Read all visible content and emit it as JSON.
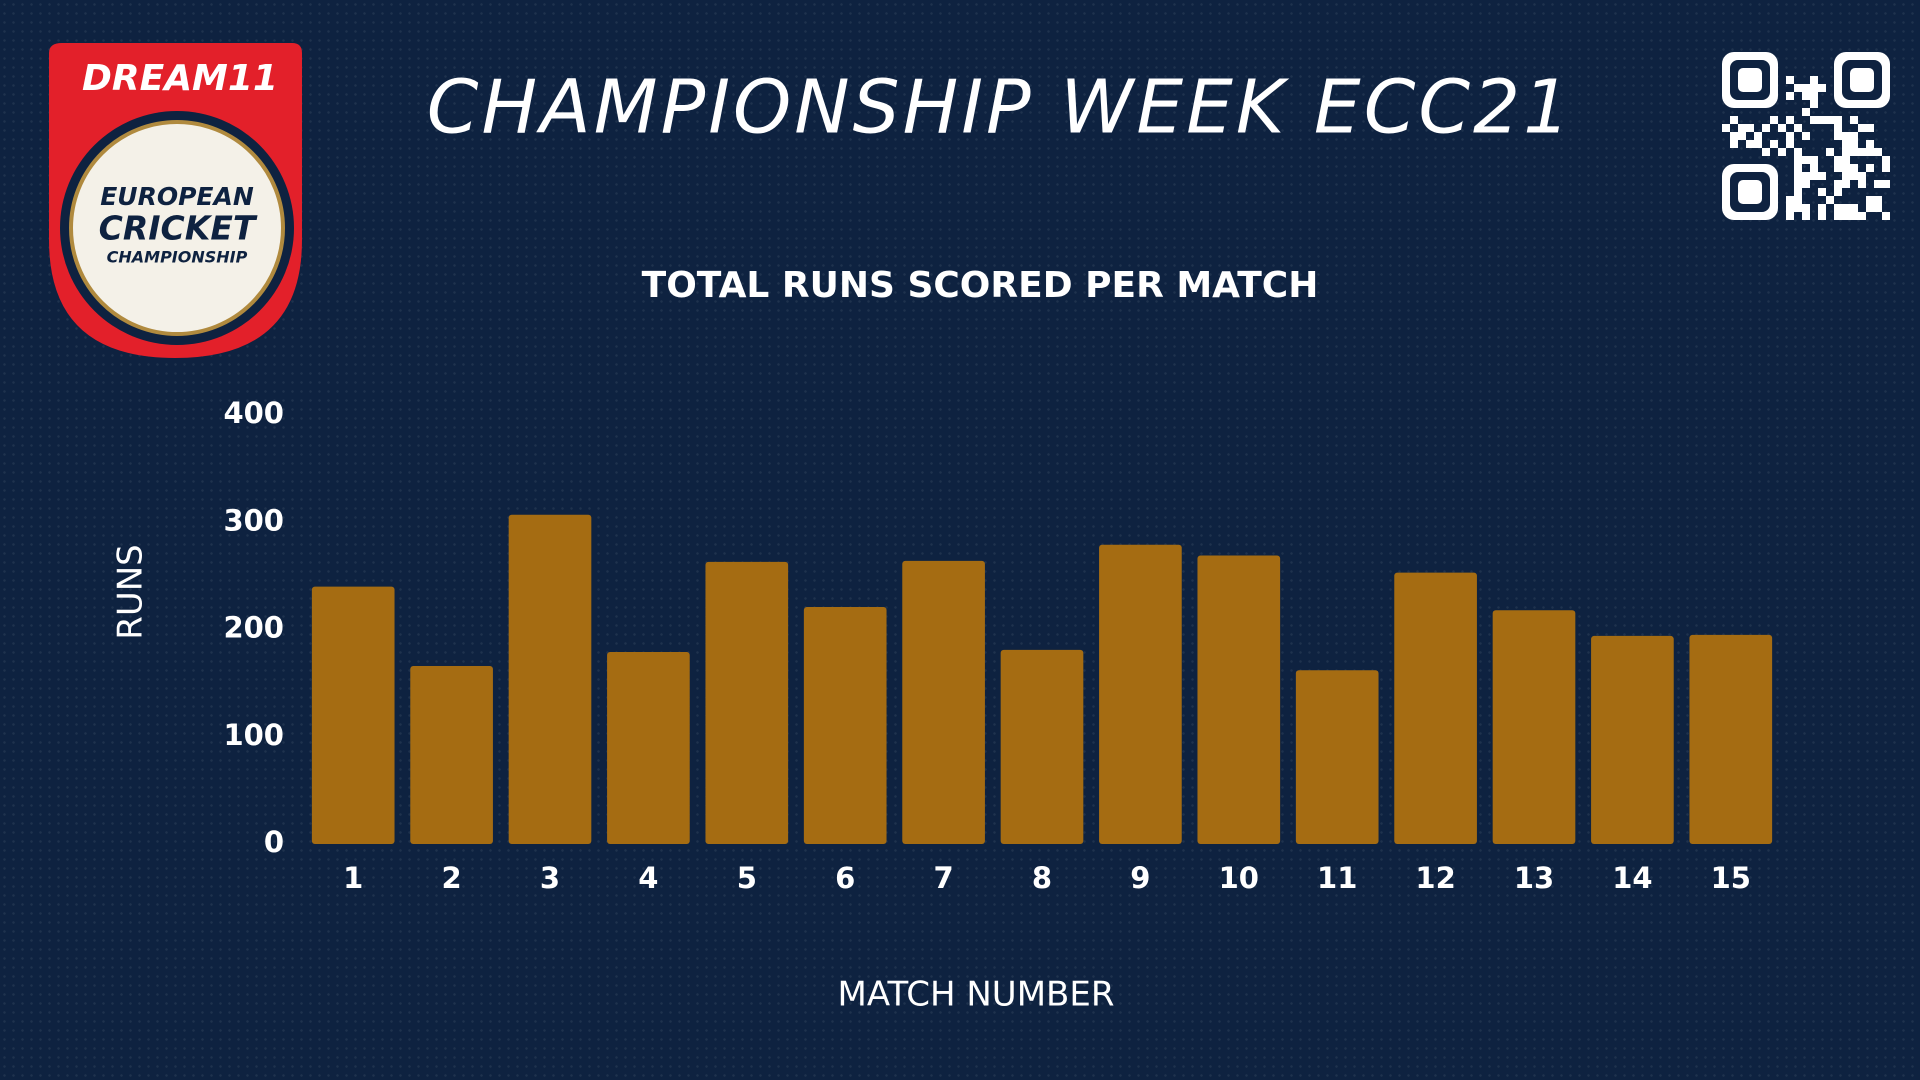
{
  "banner_title": "CHAMPIONSHIP WEEK ECC21",
  "logo": {
    "brand": "DREAM11",
    "line1": "EUROPEAN",
    "line2": "CRICKET",
    "line3": "CHAMPIONSHIP"
  },
  "chart_data": {
    "type": "bar",
    "title": "TOTAL RUNS SCORED PER MATCH",
    "x_label": "MATCH NUMBER",
    "y_label": "RUNS",
    "categories": [
      "1",
      "2",
      "3",
      "4",
      "5",
      "6",
      "7",
      "8",
      "9",
      "10",
      "11",
      "12",
      "13",
      "14",
      "15"
    ],
    "values": [
      240,
      166,
      307,
      179,
      263,
      221,
      264,
      181,
      279,
      269,
      162,
      253,
      218,
      194,
      195
    ],
    "color": "#a56c12",
    "ylim": [
      0,
      400
    ],
    "yticks": [
      0,
      100,
      200,
      300,
      400
    ],
    "grid": false
  }
}
